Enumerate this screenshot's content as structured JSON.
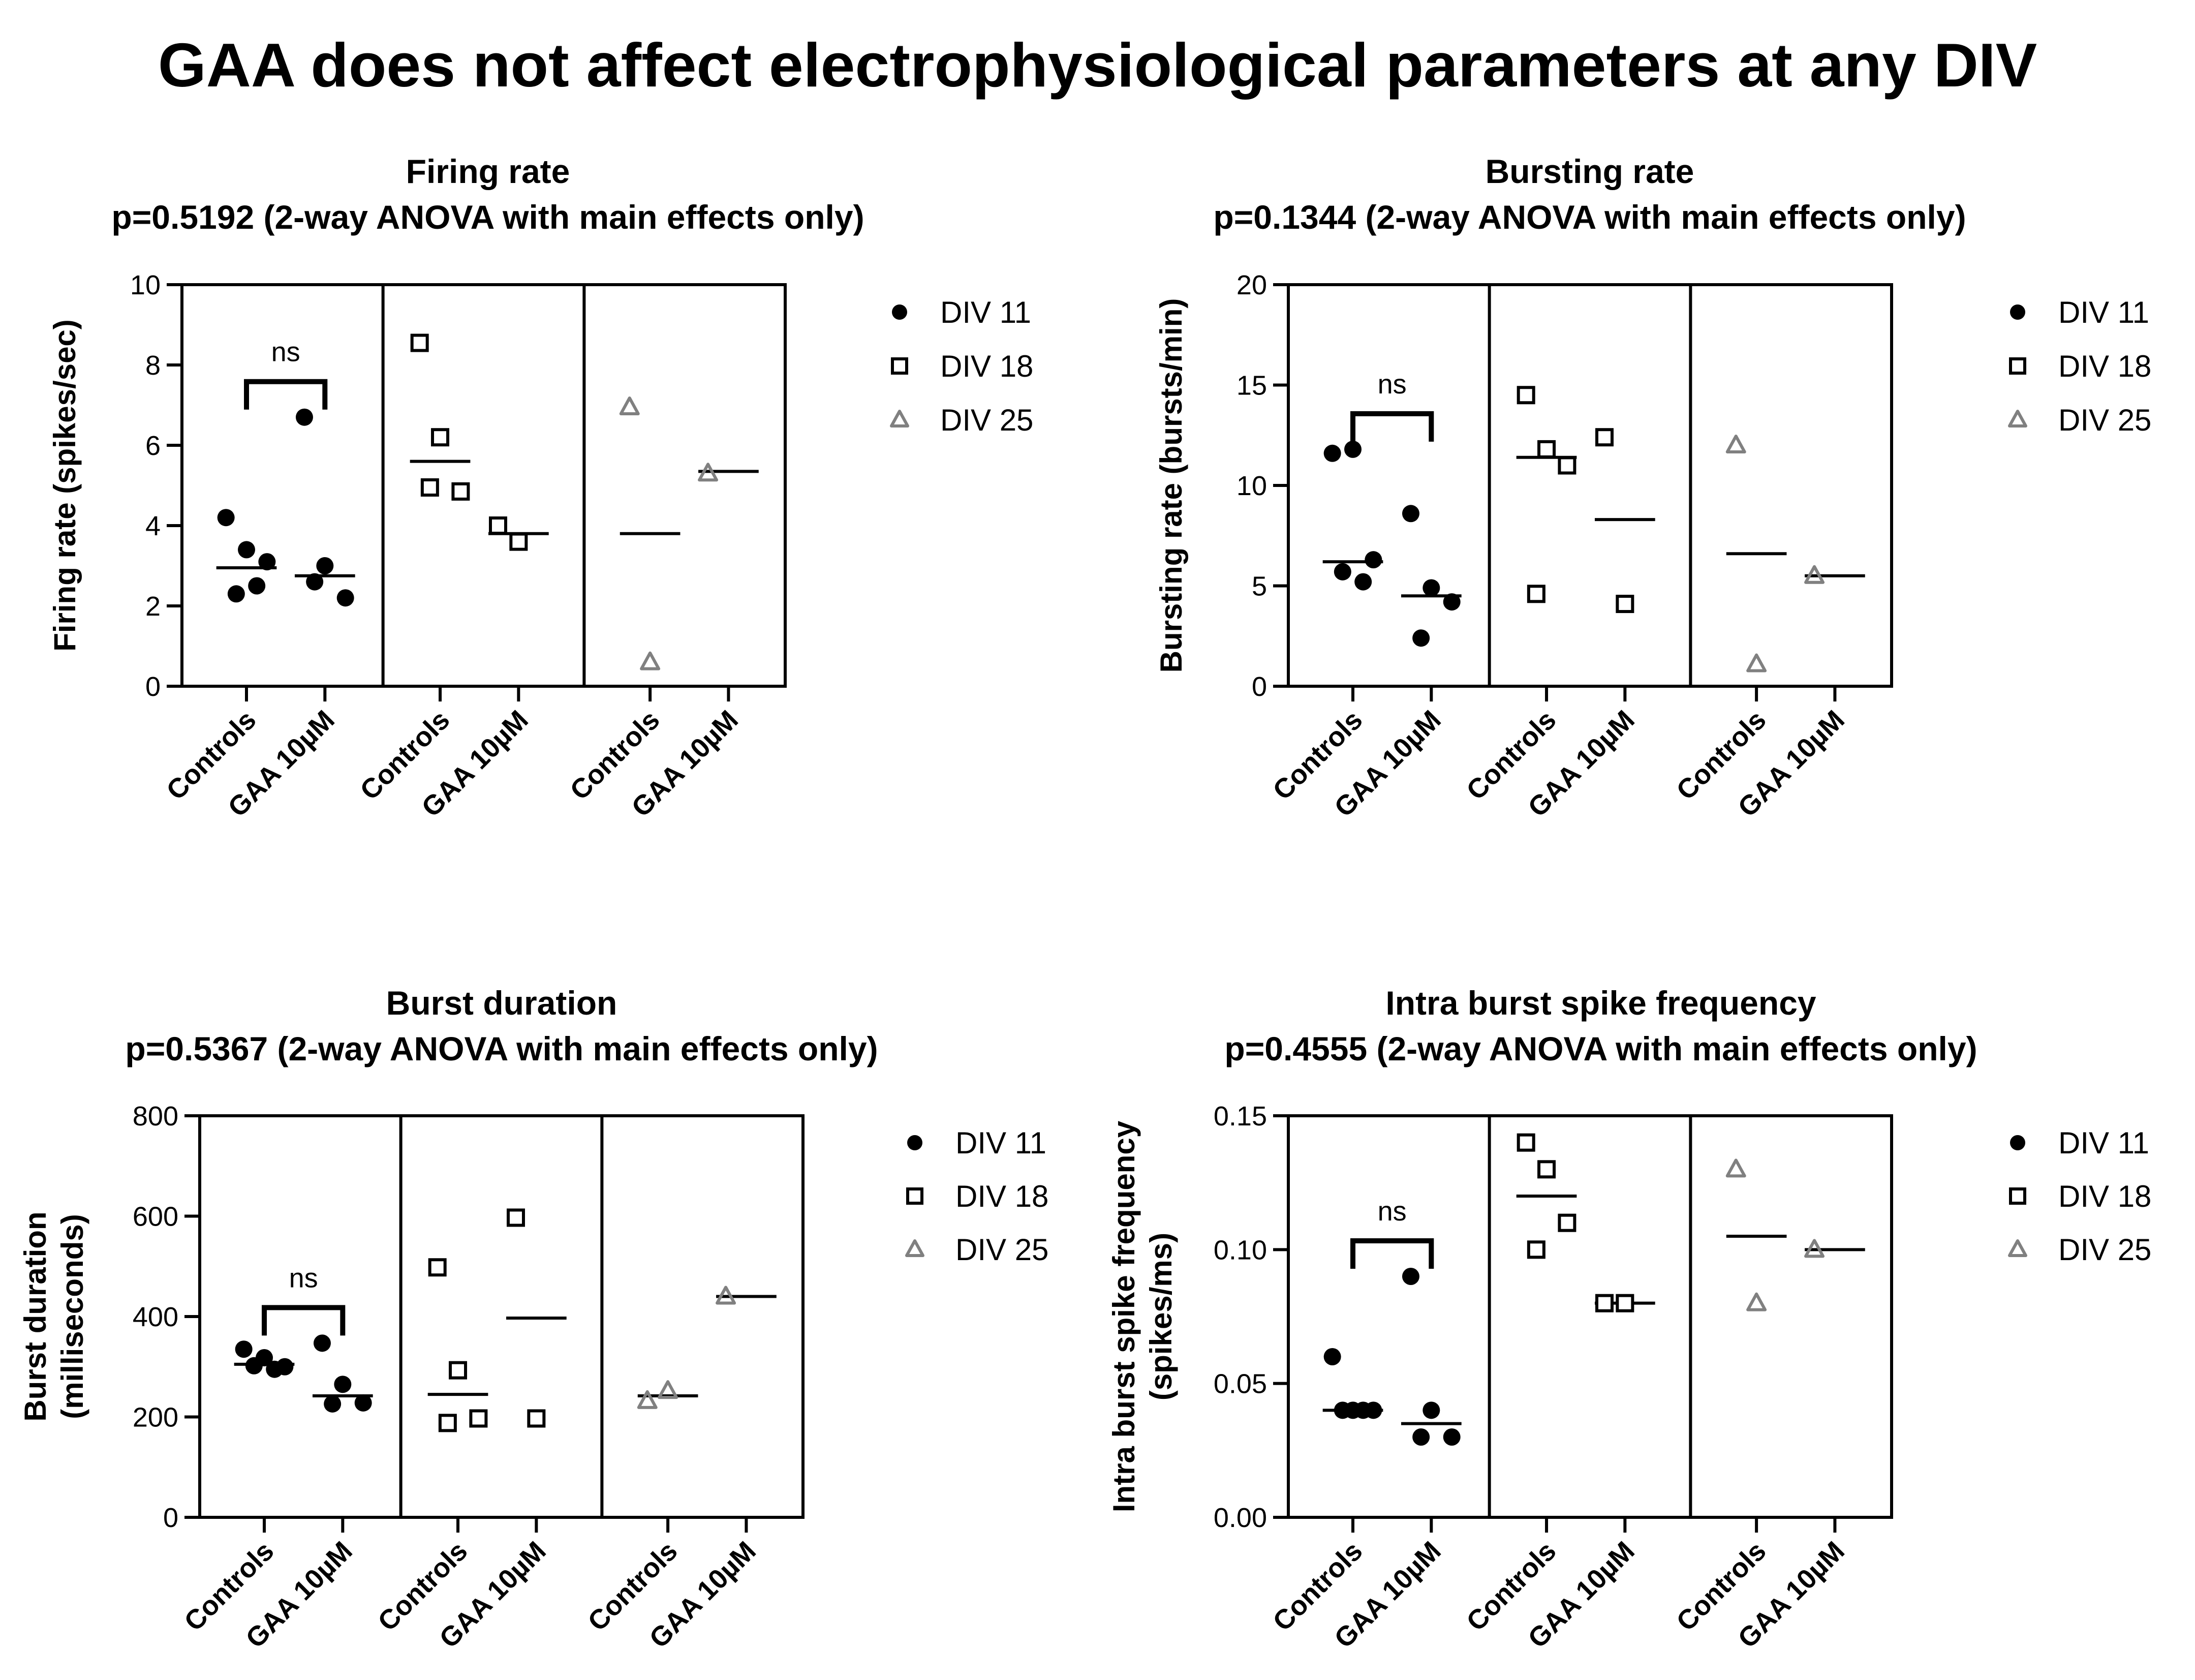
{
  "title": "GAA does not affect electrophysiological parameters at any DIV",
  "colors": {
    "div11": "#000000",
    "div18": "#000000",
    "div25": "#808080",
    "axis": "#000000"
  },
  "legend": {
    "placement": "right",
    "entries": [
      {
        "label": "DIV 11",
        "marker": "circle-filled",
        "color": "#000000"
      },
      {
        "label": "DIV 18",
        "marker": "square-open",
        "color": "#000000"
      },
      {
        "label": "DIV 25",
        "marker": "triangle-open",
        "color": "#808080"
      }
    ]
  },
  "chart_data": [
    {
      "type": "scatter",
      "title": "Firing rate",
      "subtitle": "p=0.5192 (2-way ANOVA with main effects only)",
      "ylabel": "Firing rate (spikes/sec)",
      "ylim": [
        0,
        10
      ],
      "yticks": [
        "0",
        "2",
        "4",
        "6",
        "8",
        "10"
      ],
      "groups": [
        "DIV 11",
        "DIV 18",
        "DIV 25"
      ],
      "categories": [
        "Controls",
        "GAA 10µM"
      ],
      "annotation": "ns",
      "series": [
        {
          "name": "DIV 11",
          "controls": [
            4.2,
            3.4,
            3.1,
            2.3,
            2.5
          ],
          "gaa": [
            6.7,
            3.0,
            2.2,
            2.6
          ],
          "mean_controls": 2.95,
          "mean_gaa": 2.75
        },
        {
          "name": "DIV 18",
          "controls": [
            8.55,
            6.2,
            4.85,
            4.95
          ],
          "gaa": [
            4.0,
            3.6
          ],
          "mean_controls": 5.6,
          "mean_gaa": 3.8
        },
        {
          "name": "DIV 25",
          "controls": [
            6.95,
            0.6
          ],
          "gaa": [
            5.3
          ],
          "mean_controls": 3.8,
          "mean_gaa": 5.35
        }
      ]
    },
    {
      "type": "scatter",
      "title": "Bursting rate",
      "subtitle": "p=0.1344 (2-way ANOVA with main effects only)",
      "ylabel": "Bursting rate (bursts/min)",
      "ylim": [
        0,
        20
      ],
      "yticks": [
        "0",
        "5",
        "10",
        "15",
        "20"
      ],
      "groups": [
        "DIV 11",
        "DIV 18",
        "DIV 25"
      ],
      "categories": [
        "Controls",
        "GAA 10µM"
      ],
      "annotation": "ns",
      "series": [
        {
          "name": "DIV 11",
          "controls": [
            11.6,
            11.8,
            6.3,
            5.7,
            5.2
          ],
          "gaa": [
            8.6,
            4.9,
            4.2,
            2.4
          ],
          "mean_controls": 6.2,
          "mean_gaa": 4.5
        },
        {
          "name": "DIV 18",
          "controls": [
            14.5,
            11.8,
            11.0,
            4.6
          ],
          "gaa": [
            12.4,
            4.1
          ],
          "mean_controls": 11.4,
          "mean_gaa": 8.3
        },
        {
          "name": "DIV 25",
          "controls": [
            12.0,
            1.1
          ],
          "gaa": [
            5.5
          ],
          "mean_controls": 6.6,
          "mean_gaa": 5.5
        }
      ]
    },
    {
      "type": "scatter",
      "title": "Burst duration",
      "subtitle": "p=0.5367 (2-way ANOVA with main effects only)",
      "ylabel": "Burst duration",
      "ylabel2": "(milliseconds)",
      "ylim": [
        0,
        800
      ],
      "yticks": [
        "0",
        "200",
        "400",
        "600",
        "800"
      ],
      "groups": [
        "DIV 11",
        "DIV 18",
        "DIV 25"
      ],
      "categories": [
        "Controls",
        "GAA 10µM"
      ],
      "annotation": "ns",
      "series": [
        {
          "name": "DIV 11",
          "controls": [
            335,
            318,
            300,
            302,
            295
          ],
          "gaa": [
            347,
            265,
            228,
            226
          ],
          "mean_controls": 305,
          "mean_gaa": 242
        },
        {
          "name": "DIV 18",
          "controls": [
            498,
            293,
            197,
            188
          ],
          "gaa": [
            597,
            197
          ],
          "mean_controls": 245,
          "mean_gaa": 397
        },
        {
          "name": "DIV 25",
          "controls": [
            232,
            252
          ],
          "gaa": [
            440
          ],
          "mean_controls": 242,
          "mean_gaa": 440
        }
      ]
    },
    {
      "type": "scatter",
      "title": "Intra burst spike frequency",
      "subtitle": "p=0.4555 (2-way ANOVA with main effects only)",
      "ylabel": "Intra burst spike frequency",
      "ylabel2": "(spikes/ms)",
      "ylim": [
        0,
        0.15
      ],
      "yticks": [
        "0.00",
        "0.05",
        "0.10",
        "0.15"
      ],
      "groups": [
        "DIV 11",
        "DIV 18",
        "DIV 25"
      ],
      "categories": [
        "Controls",
        "GAA 10µM"
      ],
      "annotation": "ns",
      "series": [
        {
          "name": "DIV 11",
          "controls": [
            0.06,
            0.04,
            0.04,
            0.04,
            0.04
          ],
          "gaa": [
            0.09,
            0.04,
            0.03,
            0.03
          ],
          "mean_controls": 0.04,
          "mean_gaa": 0.035
        },
        {
          "name": "DIV 18",
          "controls": [
            0.14,
            0.13,
            0.11,
            0.1
          ],
          "gaa": [
            0.08,
            0.08
          ],
          "mean_controls": 0.12,
          "mean_gaa": 0.08
        },
        {
          "name": "DIV 25",
          "controls": [
            0.13,
            0.08
          ],
          "gaa": [
            0.1
          ],
          "mean_controls": 0.105,
          "mean_gaa": 0.1
        }
      ]
    }
  ]
}
